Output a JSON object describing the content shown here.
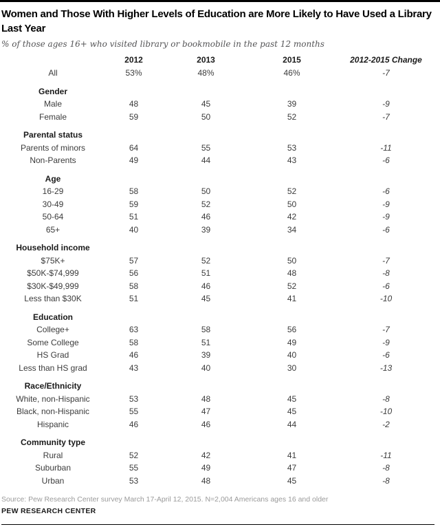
{
  "chart_data": {
    "type": "table",
    "title": "Women and Those With Higher Levels of Education are More Likely to Have Used a Library Last Year",
    "subtitle": "% of those ages 16+ who visited library or bookmobile in the past 12 months",
    "columns": [
      "2012",
      "2013",
      "2015",
      "2012-2015 Change"
    ],
    "all_row": {
      "label": "All",
      "values": [
        "53%",
        "48%",
        "46%",
        "-7"
      ]
    },
    "sections": [
      {
        "header": "Gender",
        "rows": [
          {
            "label": "Male",
            "values": [
              "48",
              "45",
              "39",
              "-9"
            ]
          },
          {
            "label": "Female",
            "values": [
              "59",
              "50",
              "52",
              "-7"
            ]
          }
        ]
      },
      {
        "header": "Parental status",
        "rows": [
          {
            "label": "Parents of minors",
            "values": [
              "64",
              "55",
              "53",
              "-11"
            ]
          },
          {
            "label": "Non-Parents",
            "values": [
              "49",
              "44",
              "43",
              "-6"
            ]
          }
        ]
      },
      {
        "header": "Age",
        "rows": [
          {
            "label": "16-29",
            "values": [
              "58",
              "50",
              "52",
              "-6"
            ]
          },
          {
            "label": "30-49",
            "values": [
              "59",
              "52",
              "50",
              "-9"
            ]
          },
          {
            "label": "50-64",
            "values": [
              "51",
              "46",
              "42",
              "-9"
            ]
          },
          {
            "label": "65+",
            "values": [
              "40",
              "39",
              "34",
              "-6"
            ]
          }
        ]
      },
      {
        "header": "Household income",
        "rows": [
          {
            "label": "$75K+",
            "values": [
              "57",
              "52",
              "50",
              "-7"
            ]
          },
          {
            "label": "$50K-$74,999",
            "values": [
              "56",
              "51",
              "48",
              "-8"
            ]
          },
          {
            "label": "$30K-$49,999",
            "values": [
              "58",
              "46",
              "52",
              "-6"
            ]
          },
          {
            "label": "Less than $30K",
            "values": [
              "51",
              "45",
              "41",
              "-10"
            ]
          }
        ]
      },
      {
        "header": "Education",
        "rows": [
          {
            "label": "College+",
            "values": [
              "63",
              "58",
              "56",
              "-7"
            ]
          },
          {
            "label": "Some College",
            "values": [
              "58",
              "51",
              "49",
              "-9"
            ]
          },
          {
            "label": "HS Grad",
            "values": [
              "46",
              "39",
              "40",
              "-6"
            ]
          },
          {
            "label": "Less than HS grad",
            "values": [
              "43",
              "40",
              "30",
              "-13"
            ]
          }
        ]
      },
      {
        "header": "Race/Ethnicity",
        "rows": [
          {
            "label": "White, non-Hispanic",
            "values": [
              "53",
              "48",
              "45",
              "-8"
            ]
          },
          {
            "label": "Black, non-Hispanic",
            "values": [
              "55",
              "47",
              "45",
              "-10"
            ]
          },
          {
            "label": "Hispanic",
            "values": [
              "46",
              "46",
              "44",
              "-2"
            ]
          }
        ]
      },
      {
        "header": "Community type",
        "rows": [
          {
            "label": "Rural",
            "values": [
              "52",
              "42",
              "41",
              "-11"
            ]
          },
          {
            "label": "Suburban",
            "values": [
              "55",
              "49",
              "47",
              "-8"
            ]
          },
          {
            "label": "Urban",
            "values": [
              "53",
              "48",
              "45",
              "-8"
            ]
          }
        ]
      }
    ]
  },
  "footer": {
    "source": "Source: Pew Research Center survey March 17-April 12, 2015. N=2,004 Americans ages 16 and older",
    "brand": "PEW RESEARCH CENTER"
  },
  "colors": {
    "accent_bar": "#000000",
    "title_text": "#000000",
    "subtitle_text": "#545456",
    "data_text": "#3b3b3b",
    "source_text": "#9a9a9a"
  }
}
